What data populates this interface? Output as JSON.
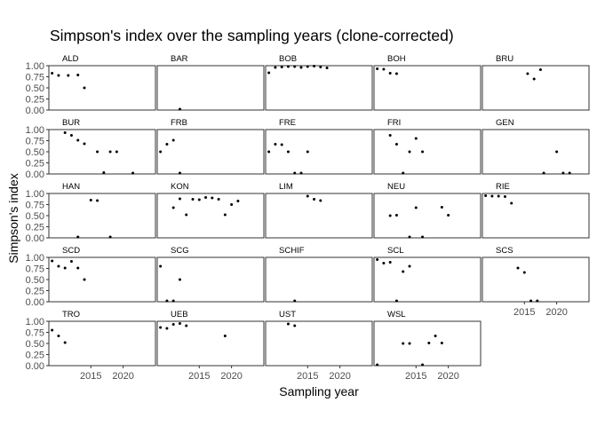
{
  "chart_data": {
    "type": "scatter",
    "title": "Simpson's index over the sampling years (clone-corrected)",
    "xlabel": "Sampling year",
    "ylabel": "Simpson's index",
    "xlim": [
      2008.5,
      2025
    ],
    "ylim": [
      0,
      1
    ],
    "x_ticks": [
      2015,
      2020
    ],
    "y_ticks": [
      0,
      0.25,
      0.5,
      0.75,
      1
    ],
    "y_tick_labels": [
      "0.00",
      "0.25",
      "0.50",
      "0.75",
      "1.00"
    ],
    "grid": false,
    "facet_layout": {
      "ncol": 5,
      "nrow": 5,
      "free_y": false,
      "shared_x": true
    },
    "panels": [
      {
        "name": "ALD",
        "points": [
          [
            2009,
            0.83
          ],
          [
            2010,
            0.78
          ],
          [
            2011.5,
            0.78
          ],
          [
            2013,
            0.79
          ],
          [
            2014,
            0.5
          ]
        ]
      },
      {
        "name": "BAR",
        "points": [
          [
            2012,
            0.02
          ]
        ]
      },
      {
        "name": "BOB",
        "points": [
          [
            2009,
            0.84
          ],
          [
            2010,
            0.96
          ],
          [
            2011,
            0.97
          ],
          [
            2012,
            0.98
          ],
          [
            2013,
            0.98
          ],
          [
            2014,
            0.96
          ],
          [
            2015,
            0.98
          ],
          [
            2016,
            0.99
          ],
          [
            2017,
            0.97
          ],
          [
            2018,
            0.95
          ]
        ]
      },
      {
        "name": "BOH",
        "points": [
          [
            2009,
            0.93
          ],
          [
            2010,
            0.92
          ],
          [
            2011,
            0.83
          ],
          [
            2012,
            0.82
          ]
        ]
      },
      {
        "name": "BRU",
        "points": [
          [
            2015.5,
            0.82
          ],
          [
            2016.5,
            0.7
          ],
          [
            2017.5,
            0.91
          ]
        ]
      },
      {
        "name": "BUR",
        "points": [
          [
            2011,
            0.93
          ],
          [
            2012,
            0.87
          ],
          [
            2013,
            0.76
          ],
          [
            2014,
            0.68
          ],
          [
            2016,
            0.5
          ],
          [
            2017,
            0.03
          ],
          [
            2018,
            0.5
          ],
          [
            2019,
            0.5
          ],
          [
            2021.5,
            0.02
          ]
        ]
      },
      {
        "name": "FRB",
        "points": [
          [
            2009,
            0.5
          ],
          [
            2010,
            0.67
          ],
          [
            2011,
            0.76
          ],
          [
            2012,
            0.02
          ]
        ]
      },
      {
        "name": "FRE",
        "points": [
          [
            2009,
            0.5
          ],
          [
            2010,
            0.67
          ],
          [
            2011,
            0.66
          ],
          [
            2012,
            0.5
          ],
          [
            2013,
            0.02
          ],
          [
            2014,
            0.02
          ],
          [
            2015,
            0.5
          ]
        ]
      },
      {
        "name": "FRI",
        "points": [
          [
            2011,
            0.87
          ],
          [
            2012,
            0.67
          ],
          [
            2013,
            0.02
          ],
          [
            2014,
            0.5
          ],
          [
            2015,
            0.8
          ],
          [
            2016,
            0.5
          ]
        ]
      },
      {
        "name": "GEN",
        "points": [
          [
            2018,
            0.02
          ],
          [
            2020,
            0.5
          ],
          [
            2021,
            0.02
          ],
          [
            2022,
            0.02
          ]
        ]
      },
      {
        "name": "HAN",
        "points": [
          [
            2013,
            0.02
          ],
          [
            2015,
            0.85
          ],
          [
            2016,
            0.84
          ],
          [
            2018,
            0.02
          ]
        ]
      },
      {
        "name": "KON",
        "points": [
          [
            2011,
            0.68
          ],
          [
            2012,
            0.88
          ],
          [
            2013,
            0.52
          ],
          [
            2014,
            0.87
          ],
          [
            2015,
            0.86
          ],
          [
            2016,
            0.91
          ],
          [
            2017,
            0.9
          ],
          [
            2018,
            0.87
          ],
          [
            2019,
            0.52
          ],
          [
            2020,
            0.75
          ],
          [
            2021,
            0.83
          ]
        ]
      },
      {
        "name": "LIM",
        "points": [
          [
            2015,
            0.94
          ],
          [
            2016,
            0.87
          ],
          [
            2017,
            0.84
          ]
        ]
      },
      {
        "name": "NEU",
        "points": [
          [
            2011,
            0.5
          ],
          [
            2012,
            0.51
          ],
          [
            2014,
            0.02
          ],
          [
            2015,
            0.68
          ],
          [
            2016,
            0.02
          ],
          [
            2019,
            0.69
          ],
          [
            2020,
            0.51
          ]
        ]
      },
      {
        "name": "RIE",
        "points": [
          [
            2009,
            0.95
          ],
          [
            2010,
            0.94
          ],
          [
            2011,
            0.94
          ],
          [
            2012,
            0.93
          ],
          [
            2013,
            0.78
          ]
        ]
      },
      {
        "name": "SCD",
        "points": [
          [
            2009,
            0.92
          ],
          [
            2010,
            0.8
          ],
          [
            2011,
            0.76
          ],
          [
            2012,
            0.91
          ],
          [
            2013,
            0.76
          ],
          [
            2014,
            0.5
          ]
        ]
      },
      {
        "name": "SCG",
        "points": [
          [
            2009,
            0.8
          ],
          [
            2010,
            0.02
          ],
          [
            2011,
            0.02
          ],
          [
            2012,
            0.5
          ]
        ]
      },
      {
        "name": "SCHIF",
        "points": [
          [
            2013,
            0.02
          ]
        ]
      },
      {
        "name": "SCL",
        "points": [
          [
            2009,
            0.95
          ],
          [
            2010,
            0.87
          ],
          [
            2011,
            0.89
          ],
          [
            2012,
            0.02
          ],
          [
            2013,
            0.68
          ],
          [
            2014,
            0.8
          ]
        ]
      },
      {
        "name": "SCS",
        "points": [
          [
            2014,
            0.76
          ],
          [
            2015,
            0.66
          ],
          [
            2016,
            0.02
          ],
          [
            2017,
            0.02
          ]
        ]
      },
      {
        "name": "TRO",
        "points": [
          [
            2009,
            0.8
          ],
          [
            2010,
            0.67
          ],
          [
            2011,
            0.52
          ]
        ]
      },
      {
        "name": "UEB",
        "points": [
          [
            2009,
            0.86
          ],
          [
            2010,
            0.84
          ],
          [
            2011,
            0.93
          ],
          [
            2012,
            0.95
          ],
          [
            2013,
            0.9
          ],
          [
            2019,
            0.67
          ]
        ]
      },
      {
        "name": "UST",
        "points": [
          [
            2012,
            0.94
          ],
          [
            2013,
            0.9
          ]
        ]
      },
      {
        "name": "WSL",
        "points": [
          [
            2009,
            0.02
          ],
          [
            2013,
            0.5
          ],
          [
            2014,
            0.5
          ],
          [
            2016,
            0.02
          ],
          [
            2017,
            0.51
          ],
          [
            2018,
            0.67
          ],
          [
            2019,
            0.51
          ]
        ]
      }
    ]
  }
}
